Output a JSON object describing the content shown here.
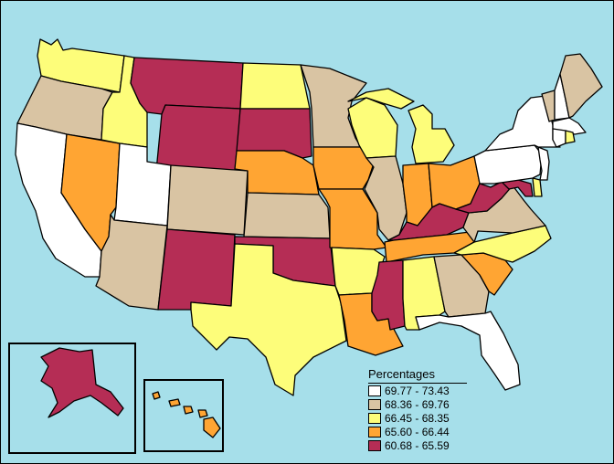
{
  "colors": {
    "background": "#a6dfea",
    "class_1": "#ffffff",
    "class_2": "#d9c4a3",
    "class_3": "#fdfd7a",
    "class_4": "#ffa533",
    "class_5": "#b52d55"
  },
  "legend": {
    "title": "Percentages",
    "items": [
      {
        "label": "69.77 - 73.43",
        "color": "#ffffff"
      },
      {
        "label": "68.36 - 69.76",
        "color": "#d9c4a3"
      },
      {
        "label": "66.45 - 68.35",
        "color": "#fdfd7a"
      },
      {
        "label": "65.60 - 66.44",
        "color": "#ffa533"
      },
      {
        "label": "60.68 - 65.59",
        "color": "#b52d55"
      }
    ]
  },
  "state_classes": {
    "WA": 3,
    "OR": 2,
    "CA": 1,
    "NV": 4,
    "ID": 3,
    "MT": 5,
    "WY": 5,
    "UT": 1,
    "AZ": 2,
    "CO": 2,
    "NM": 5,
    "ND": 3,
    "SD": 5,
    "NE": 4,
    "KS": 2,
    "OK": 5,
    "TX": 3,
    "MN": 2,
    "IA": 4,
    "MO": 4,
    "AR": 3,
    "LA": 4,
    "WI": 3,
    "IL": 2,
    "MS": 5,
    "MI": 3,
    "IN": 4,
    "KY": 5,
    "TN": 4,
    "AL": 3,
    "OH": 4,
    "WV": 5,
    "VA": 2,
    "NC": 3,
    "SC": 4,
    "GA": 2,
    "FL": 1,
    "PA": 1,
    "NY": 1,
    "ME": 2,
    "VT": 2,
    "NH": 1,
    "MA": 1,
    "CT": 1,
    "RI": 3,
    "NJ": 1,
    "DE": 3,
    "MD": 5,
    "AK": 5,
    "HI": 4
  }
}
